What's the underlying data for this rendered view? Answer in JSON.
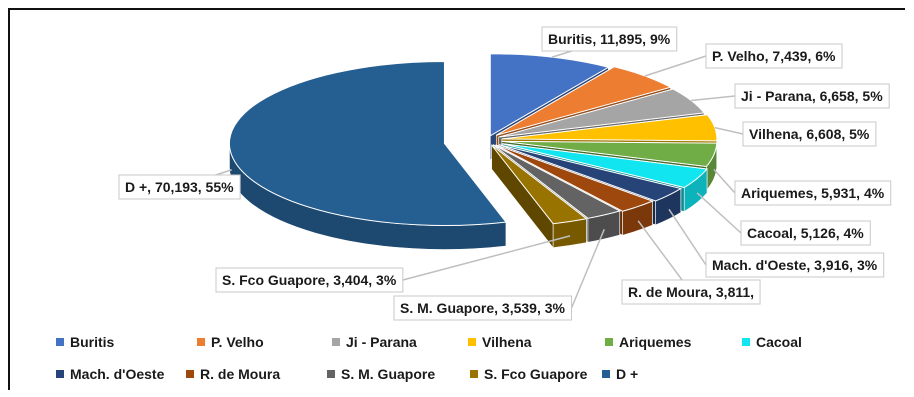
{
  "chart_data": {
    "type": "pie",
    "style": "3d-exploded",
    "categories": [
      "Buritis",
      "P. Velho",
      "Ji - Parana",
      "Vilhena",
      "Ariquemes",
      "Cacoal",
      "Mach. d'Oeste",
      "R. de Moura",
      "S. M. Guapore",
      "S. Fco Guapore",
      "D +"
    ],
    "values": [
      11895,
      7439,
      6658,
      6608,
      5931,
      5126,
      3916,
      3811,
      3539,
      3404,
      70193
    ],
    "percents": [
      9,
      6,
      5,
      5,
      4,
      4,
      3,
      3,
      3,
      3,
      55
    ],
    "data_labels": [
      "Buritis, 11,895, 9%",
      "P. Velho, 7,439, 6%",
      "Ji - Parana, 6,658, 5%",
      "Vilhena, 6,608, 5%",
      "Ariquemes, 5,931, 4%",
      "Cacoal, 5,126, 4%",
      "Mach. d'Oeste, 3,916, 3%",
      "R. de Moura, 3,811,",
      "S. M. Guapore, 3,539, 3%",
      "S. Fco Guapore, 3,404, 3%",
      "D +, 70,193, 55%"
    ],
    "colors": [
      "#4472c4",
      "#ed7d31",
      "#a5a5a5",
      "#ffc000",
      "#70ad47",
      "#11e6f0",
      "#264478",
      "#9e480e",
      "#636363",
      "#997300",
      "#255e91"
    ],
    "legend_position": "bottom",
    "legend": [
      "Buritis",
      "P. Velho",
      "Ji - Parana",
      "Vilhena",
      "Ariquemes",
      "Cacoal",
      "Mach. d'Oeste",
      "R. de Moura",
      "S. M. Guapore",
      "S. Fco Guapore",
      "D +"
    ]
  }
}
